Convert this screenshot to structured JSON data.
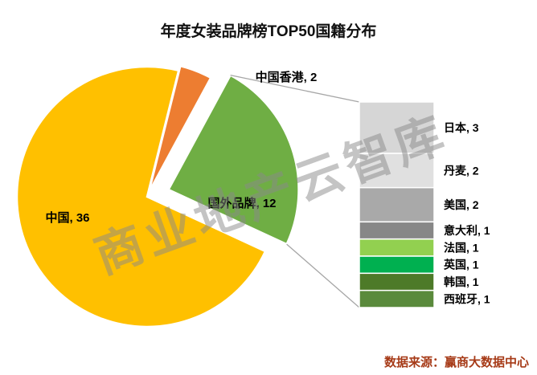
{
  "title": "年度女装品牌榜TOP50国籍分布",
  "watermark": "商业地产云智库",
  "source": "数据来源：赢商大数据中心",
  "chart_data": {
    "type": "pie",
    "subtype": "pie-of-pie",
    "title": "年度女装品牌榜TOP50国籍分布",
    "total": 50,
    "pie_slices": [
      {
        "label": "中国",
        "value": 36,
        "color": "#FFC000",
        "data_label": "中国, 36"
      },
      {
        "label": "中国香港",
        "value": 2,
        "color": "#ED7D31",
        "data_label": "中国香港, 2"
      },
      {
        "label": "国外品牌",
        "value": 12,
        "color": "#6FAE44",
        "data_label": "国外品牌, 12"
      }
    ],
    "breakdown": {
      "parent": "国外品牌",
      "type": "stacked-bar",
      "segments": [
        {
          "label": "日本",
          "value": 3,
          "color": "#D6D6D6",
          "data_label": "日本, 3"
        },
        {
          "label": "丹麦",
          "value": 2,
          "color": "#E0E0E0",
          "data_label": "丹麦, 2"
        },
        {
          "label": "美国",
          "value": 2,
          "color": "#A9A9A9",
          "data_label": "美国, 2"
        },
        {
          "label": "意大利",
          "value": 1,
          "color": "#878787",
          "data_label": "意大利, 1"
        },
        {
          "label": "法国",
          "value": 1,
          "color": "#92D050",
          "data_label": "法国, 1"
        },
        {
          "label": "英国",
          "value": 1,
          "color": "#00B050",
          "data_label": "英国, 1"
        },
        {
          "label": "韩国",
          "value": 1,
          "color": "#4D7A28",
          "data_label": "韩国, 1"
        },
        {
          "label": "西班牙",
          "value": 1,
          "color": "#5A8A3C",
          "data_label": "西班牙, 1"
        }
      ]
    }
  }
}
